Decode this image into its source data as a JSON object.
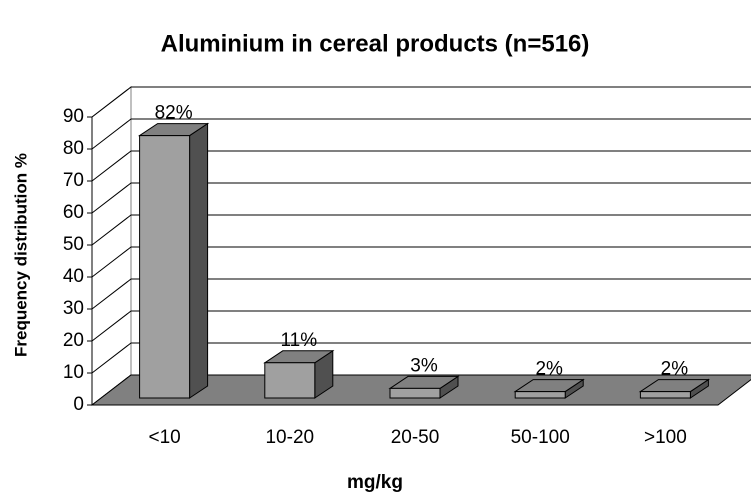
{
  "chart_data": {
    "type": "bar3d",
    "title": "Aluminium in cereal products (n=516)",
    "x_label": "mg/kg",
    "y_label": "Frequency distribution  %",
    "categories": [
      "<10",
      "10-20",
      "20-50",
      "50-100",
      ">100"
    ],
    "values": [
      82,
      11,
      3,
      2,
      2
    ],
    "value_labels": [
      "82%",
      "11%",
      "3%",
      "2%",
      "2%"
    ],
    "color": "#a0a0a0",
    "ylim": [
      0,
      90
    ],
    "yticks": [
      0,
      10,
      20,
      30,
      40,
      50,
      60,
      70,
      80,
      90
    ],
    "grid": true
  }
}
